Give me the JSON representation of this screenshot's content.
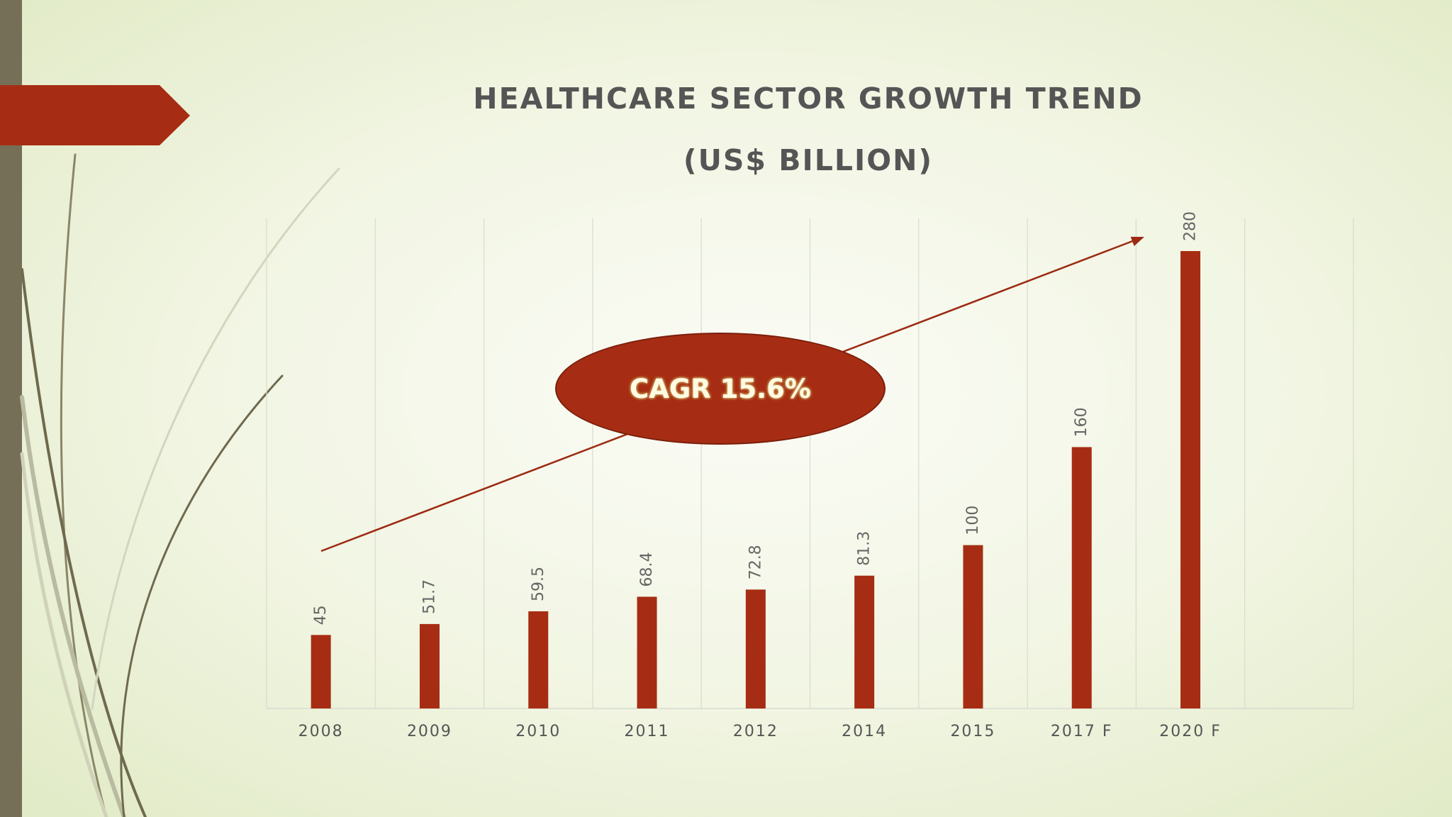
{
  "slide": {
    "title_line1": "HEALTHCARE SECTOR GROWTH TREND",
    "title_line2": "(US$ BILLION)",
    "cagr_label": "CAGR 15.6%"
  },
  "colors": {
    "bar": "#a62d13",
    "arrow": "#9c2a12",
    "accent_banner": "#a62d13",
    "side_bar": "#766f57",
    "gridline": "#d8dbcf",
    "label_text": "#666666"
  },
  "chart_data": {
    "type": "bar",
    "title": "HEALTHCARE SECTOR GROWTH TREND (US$ BILLION)",
    "categories": [
      "2008",
      "2009",
      "2010",
      "2011",
      "2012",
      "2014",
      "2015",
      "2017 F",
      "2020 F"
    ],
    "values": [
      45,
      51.7,
      59.5,
      68.4,
      72.8,
      81.3,
      100,
      160,
      280
    ],
    "value_labels": [
      "45",
      "51.7",
      "59.5",
      "68.4",
      "72.8",
      "81.3",
      "100",
      "160",
      "280"
    ],
    "xlabel": "",
    "ylabel": "",
    "ylim": [
      0,
      300
    ],
    "category_slots": 10,
    "grid": "vertical",
    "legend": "none",
    "annotation": "CAGR 15.6%"
  }
}
